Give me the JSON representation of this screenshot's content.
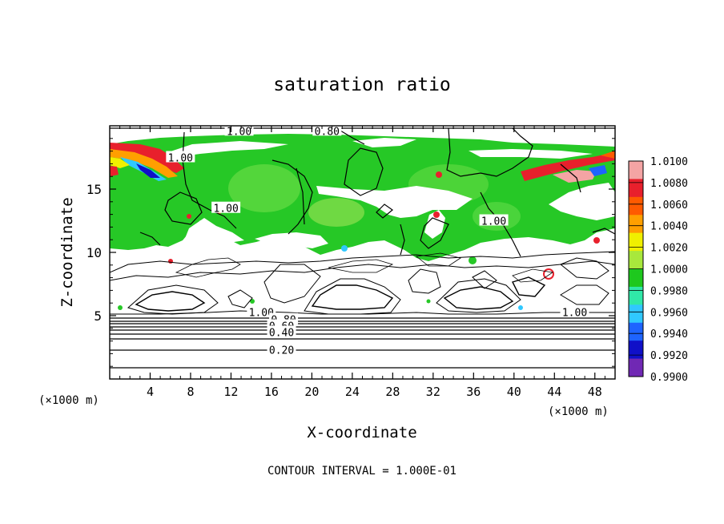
{
  "chart_data": {
    "type": "heatmap",
    "title": "saturation ratio",
    "xlabel": "X-coordinate",
    "ylabel": "Z-coordinate",
    "x_unit_left": "(×1000 m)",
    "x_unit_right": "(×1000 m)",
    "xlim": [
      0,
      50
    ],
    "ylim": [
      0,
      20
    ],
    "x_ticks": [
      4,
      8,
      12,
      16,
      20,
      24,
      28,
      32,
      36,
      40,
      44,
      48
    ],
    "y_ticks": [
      5,
      10,
      15
    ],
    "footnote": "CONTOUR INTERVAL = 1.000E-01",
    "colorbar": {
      "labels": [
        "1.0100",
        "1.0080",
        "1.0060",
        "1.0040",
        "1.0020",
        "1.0000",
        "0.9980",
        "0.9960",
        "0.9940",
        "0.9920",
        "0.9900"
      ],
      "colors": [
        "#f4a4a4",
        "#e8202c",
        "#ff5a00",
        "#ff9f00",
        "#f0f000",
        "#a8e83c",
        "#1ec81e",
        "#30e8a8",
        "#30c8ff",
        "#1e64ff",
        "#1010c8",
        "#7028b4"
      ]
    },
    "contour_labels": [
      {
        "text": "1.00",
        "x": 12.8,
        "z": 19.6
      },
      {
        "text": "0.80",
        "x": 21.5,
        "z": 19.6
      },
      {
        "text": "1.00",
        "x": 7.0,
        "z": 17.5
      },
      {
        "text": "1.00",
        "x": 11.5,
        "z": 13.5
      },
      {
        "text": "1.00",
        "x": 38.0,
        "z": 12.5
      },
      {
        "text": "1.00",
        "x": 15.0,
        "z": 5.3
      },
      {
        "text": "0.80",
        "x": 17.2,
        "z": 4.7
      },
      {
        "text": "0.60",
        "x": 17.0,
        "z": 4.2
      },
      {
        "text": "0.40",
        "x": 17.0,
        "z": 3.7
      },
      {
        "text": "0.20",
        "x": 17.0,
        "z": 2.3
      },
      {
        "text": "1.00",
        "x": 46.0,
        "z": 5.3
      }
    ]
  }
}
